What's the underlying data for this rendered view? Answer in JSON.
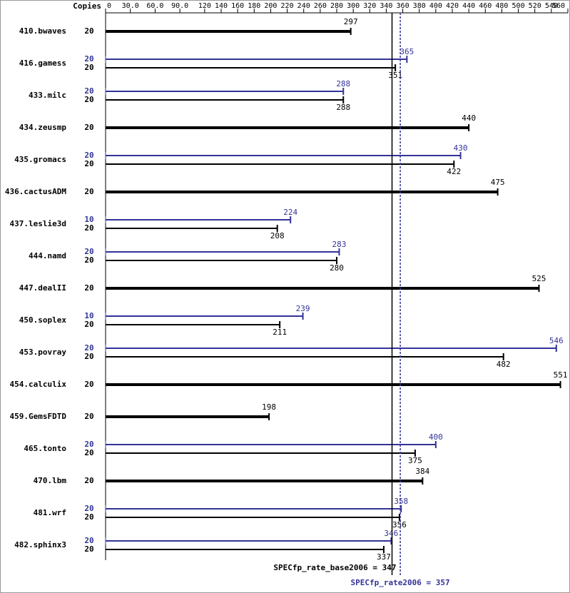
{
  "chart_data": {
    "type": "bar",
    "copies_header": "Copies",
    "categories": [
      "410.bwaves",
      "416.gamess",
      "433.milc",
      "434.zeusmp",
      "435.gromacs",
      "436.cactusADM",
      "437.leslie3d",
      "444.namd",
      "447.dealII",
      "450.soplex",
      "453.povray",
      "454.calculix",
      "459.GemsFDTD",
      "465.tonto",
      "470.lbm",
      "481.wrf",
      "482.sphinx3"
    ],
    "base": {
      "color": "#000000",
      "copies": [
        20,
        20,
        20,
        20,
        20,
        20,
        20,
        20,
        20,
        20,
        20,
        20,
        20,
        20,
        20,
        20,
        20
      ],
      "values": [
        297,
        351,
        288,
        440,
        422,
        475,
        208,
        280,
        525,
        211,
        482,
        551,
        198,
        375,
        384,
        356,
        337
      ]
    },
    "peak": {
      "color": "#333399",
      "copies": [
        null,
        20,
        20,
        null,
        20,
        null,
        10,
        20,
        null,
        10,
        20,
        null,
        null,
        20,
        null,
        20,
        20
      ],
      "values": [
        null,
        365,
        288,
        null,
        430,
        null,
        224,
        283,
        null,
        239,
        546,
        null,
        null,
        400,
        null,
        358,
        346
      ]
    },
    "xlim": [
      0,
      560
    ],
    "xticks": [
      0,
      {
        "value": 30,
        "label": "30.0"
      },
      {
        "value": 60,
        "label": "60.0"
      },
      {
        "value": 90,
        "label": "90.0"
      },
      120,
      140,
      160,
      180,
      200,
      220,
      240,
      260,
      280,
      300,
      320,
      340,
      360,
      380,
      400,
      420,
      440,
      460,
      480,
      500,
      520,
      540,
      560
    ],
    "base_mean": {
      "label": "SPECfp_rate_base2006 = 347",
      "value": 347
    },
    "peak_mean": {
      "label": "SPECfp_rate2006 = 357",
      "value": 357
    }
  }
}
